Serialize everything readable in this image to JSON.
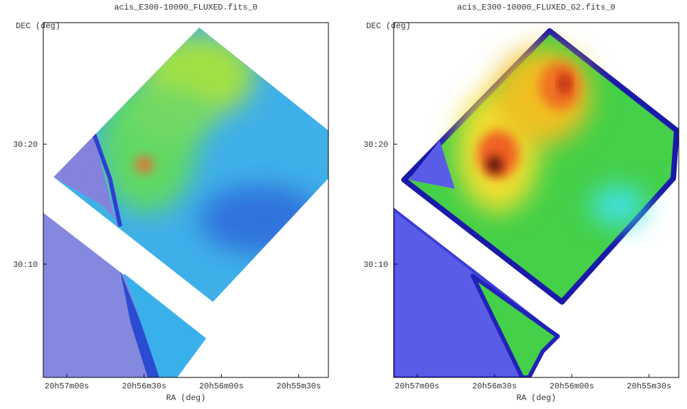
{
  "chart_data": [
    {
      "type": "image",
      "title": "acis_E300-10000_FLUXED.fits_0",
      "xlabel": "RA (deg)",
      "ylabel": "DEC (deg)",
      "xlim": [
        314.288,
        313.827
      ],
      "ylim": [
        30.0095,
        30.502
      ],
      "xticks": [
        {
          "value": 314.25,
          "label": "20h57m00s"
        },
        {
          "value": 314.125,
          "label": "20h56m30s"
        },
        {
          "value": 314.0,
          "label": "20h56m00s"
        },
        {
          "value": 313.875,
          "label": "20h55m30s"
        }
      ],
      "yticks": [
        {
          "value": 30.1667,
          "label": "30:10"
        },
        {
          "value": 30.3333,
          "label": "30:20"
        }
      ]
    },
    {
      "type": "image",
      "title": "acis_E300-10000_FLUXED_G2.fits_0",
      "xlabel": "RA (deg)",
      "ylabel": "DEC (deg)",
      "xlim": [
        314.288,
        313.827
      ],
      "ylim": [
        30.0095,
        30.502
      ],
      "xticks": [
        {
          "value": 314.25,
          "label": "20h57m00s"
        },
        {
          "value": 314.125,
          "label": "20h56m30s"
        },
        {
          "value": 314.0,
          "label": "20h56m00s"
        },
        {
          "value": 313.875,
          "label": "20h55m30s"
        }
      ],
      "yticks": [
        {
          "value": 30.1667,
          "label": "30:10"
        },
        {
          "value": 30.3333,
          "label": "30:20"
        }
      ]
    }
  ]
}
